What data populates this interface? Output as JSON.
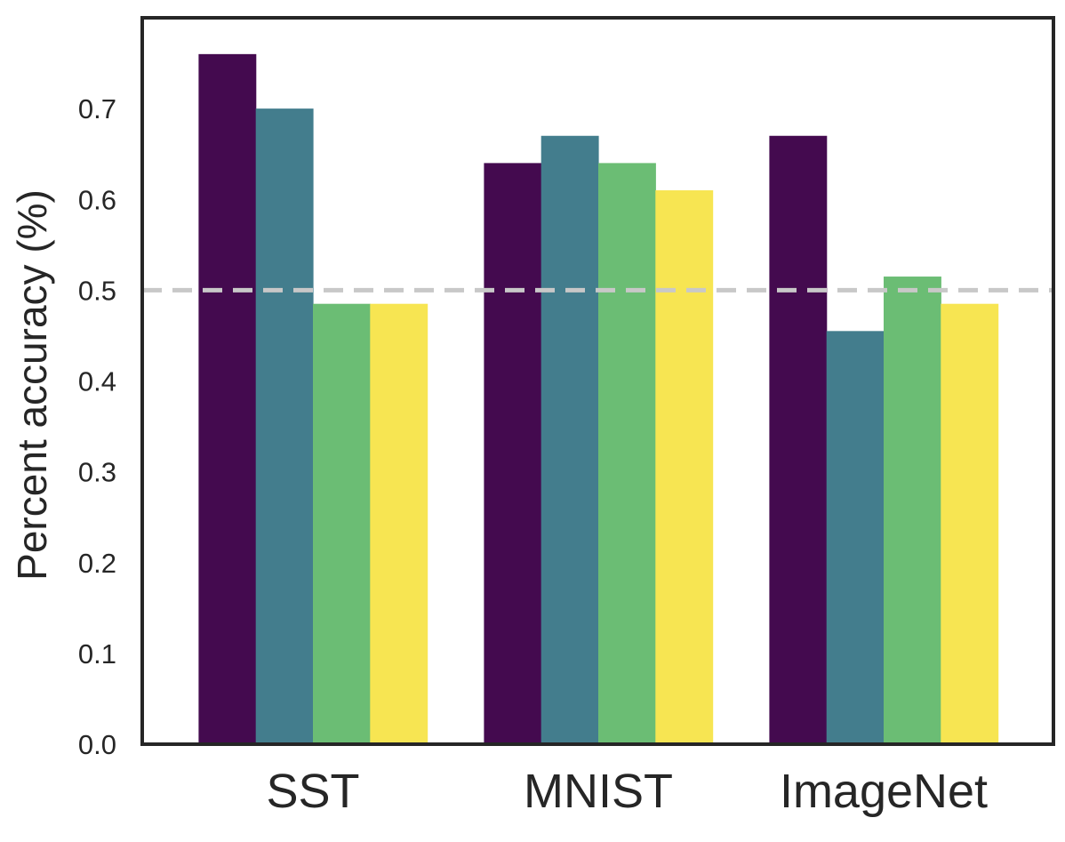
{
  "chart_data": {
    "type": "bar",
    "title": "",
    "xlabel": "",
    "ylabel": "Percent accuracy (%)",
    "categories": [
      "SST",
      "MNIST",
      "ImageNet"
    ],
    "series": [
      {
        "color": "#440a4f",
        "values": [
          0.76,
          0.64,
          0.67
        ]
      },
      {
        "color": "#437d8d",
        "values": [
          0.7,
          0.67,
          0.455
        ]
      },
      {
        "color": "#6bbd74",
        "values": [
          0.485,
          0.64,
          0.515
        ]
      },
      {
        "color": "#f7e552",
        "values": [
          0.485,
          0.61,
          0.485
        ]
      }
    ],
    "ylim": [
      0,
      0.8
    ],
    "yticks": [
      "0.0",
      "0.1",
      "0.2",
      "0.3",
      "0.4",
      "0.5",
      "0.6",
      "0.7"
    ],
    "reference_line": {
      "y": 0.5,
      "style": "dashed",
      "color": "#c8c8c8"
    },
    "grid": false,
    "legend": "none"
  }
}
